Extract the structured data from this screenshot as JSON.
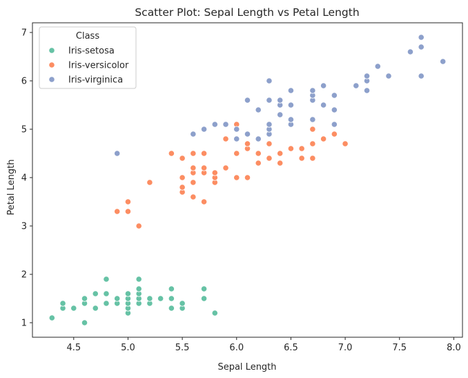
{
  "chart_data": {
    "type": "scatter",
    "title": "Scatter Plot: Sepal Length vs Petal Length",
    "xlabel": "Sepal Length",
    "ylabel": "Petal Length",
    "xlim": [
      4.12,
      8.08
    ],
    "ylim": [
      0.7,
      7.2
    ],
    "xticks": [
      4.5,
      5.0,
      5.5,
      6.0,
      6.5,
      7.0,
      7.5,
      8.0
    ],
    "xtick_labels": [
      "4.5",
      "5.0",
      "5.5",
      "6.0",
      "6.5",
      "7.0",
      "7.5",
      "8.0"
    ],
    "yticks": [
      1,
      2,
      3,
      4,
      5,
      6,
      7
    ],
    "ytick_labels": [
      "1",
      "2",
      "3",
      "4",
      "5",
      "6",
      "7"
    ],
    "grid": false,
    "legend": {
      "title": "Class",
      "position": "top-left"
    },
    "series": [
      {
        "name": "Iris-setosa",
        "color": "#66c2a5",
        "points": [
          [
            4.3,
            1.1
          ],
          [
            4.4,
            1.3
          ],
          [
            4.4,
            1.4
          ],
          [
            4.5,
            1.3
          ],
          [
            4.6,
            1.0
          ],
          [
            4.6,
            1.4
          ],
          [
            4.6,
            1.5
          ],
          [
            4.7,
            1.3
          ],
          [
            4.7,
            1.6
          ],
          [
            4.8,
            1.4
          ],
          [
            4.8,
            1.6
          ],
          [
            4.8,
            1.9
          ],
          [
            4.9,
            1.4
          ],
          [
            4.9,
            1.5
          ],
          [
            5.0,
            1.2
          ],
          [
            5.0,
            1.3
          ],
          [
            5.0,
            1.4
          ],
          [
            5.0,
            1.5
          ],
          [
            5.0,
            1.6
          ],
          [
            5.1,
            1.4
          ],
          [
            5.1,
            1.5
          ],
          [
            5.1,
            1.6
          ],
          [
            5.1,
            1.7
          ],
          [
            5.1,
            1.9
          ],
          [
            5.2,
            1.4
          ],
          [
            5.2,
            1.5
          ],
          [
            5.3,
            1.5
          ],
          [
            5.4,
            1.3
          ],
          [
            5.4,
            1.5
          ],
          [
            5.4,
            1.7
          ],
          [
            5.5,
            1.3
          ],
          [
            5.5,
            1.4
          ],
          [
            5.7,
            1.5
          ],
          [
            5.7,
            1.7
          ],
          [
            5.8,
            1.2
          ]
        ]
      },
      {
        "name": "Iris-versicolor",
        "color": "#fc8d62",
        "points": [
          [
            4.9,
            3.3
          ],
          [
            5.0,
            3.3
          ],
          [
            5.0,
            3.5
          ],
          [
            5.1,
            3.0
          ],
          [
            5.2,
            3.9
          ],
          [
            5.4,
            4.5
          ],
          [
            5.5,
            3.7
          ],
          [
            5.5,
            3.8
          ],
          [
            5.5,
            4.0
          ],
          [
            5.5,
            4.4
          ],
          [
            5.6,
            3.6
          ],
          [
            5.6,
            3.9
          ],
          [
            5.6,
            4.1
          ],
          [
            5.6,
            4.2
          ],
          [
            5.6,
            4.5
          ],
          [
            5.7,
            3.5
          ],
          [
            5.7,
            4.1
          ],
          [
            5.7,
            4.2
          ],
          [
            5.7,
            4.5
          ],
          [
            5.8,
            3.9
          ],
          [
            5.8,
            4.0
          ],
          [
            5.8,
            4.1
          ],
          [
            5.9,
            4.2
          ],
          [
            5.9,
            4.8
          ],
          [
            6.0,
            4.0
          ],
          [
            6.0,
            4.5
          ],
          [
            6.0,
            5.1
          ],
          [
            6.1,
            4.0
          ],
          [
            6.1,
            4.6
          ],
          [
            6.1,
            4.7
          ],
          [
            6.2,
            4.3
          ],
          [
            6.2,
            4.5
          ],
          [
            6.3,
            4.4
          ],
          [
            6.3,
            4.7
          ],
          [
            6.4,
            4.3
          ],
          [
            6.4,
            4.5
          ],
          [
            6.5,
            4.6
          ],
          [
            6.6,
            4.4
          ],
          [
            6.6,
            4.6
          ],
          [
            6.7,
            4.4
          ],
          [
            6.7,
            4.7
          ],
          [
            6.7,
            5.0
          ],
          [
            6.8,
            4.8
          ],
          [
            6.9,
            4.9
          ],
          [
            7.0,
            4.7
          ]
        ]
      },
      {
        "name": "Iris-virginica",
        "color": "#8da0cb",
        "points": [
          [
            4.9,
            4.5
          ],
          [
            5.6,
            4.9
          ],
          [
            5.7,
            5.0
          ],
          [
            5.8,
            5.1
          ],
          [
            5.9,
            5.1
          ],
          [
            6.0,
            4.8
          ],
          [
            6.0,
            5.0
          ],
          [
            6.1,
            4.9
          ],
          [
            6.1,
            5.6
          ],
          [
            6.2,
            4.8
          ],
          [
            6.2,
            5.4
          ],
          [
            6.3,
            4.9
          ],
          [
            6.3,
            5.0
          ],
          [
            6.3,
            5.1
          ],
          [
            6.3,
            5.6
          ],
          [
            6.3,
            6.0
          ],
          [
            6.4,
            5.3
          ],
          [
            6.4,
            5.5
          ],
          [
            6.4,
            5.6
          ],
          [
            6.5,
            5.1
          ],
          [
            6.5,
            5.2
          ],
          [
            6.5,
            5.5
          ],
          [
            6.5,
            5.8
          ],
          [
            6.7,
            5.2
          ],
          [
            6.7,
            5.6
          ],
          [
            6.7,
            5.7
          ],
          [
            6.7,
            5.8
          ],
          [
            6.8,
            5.5
          ],
          [
            6.8,
            5.9
          ],
          [
            6.9,
            5.1
          ],
          [
            6.9,
            5.4
          ],
          [
            6.9,
            5.7
          ],
          [
            7.1,
            5.9
          ],
          [
            7.2,
            5.8
          ],
          [
            7.2,
            6.0
          ],
          [
            7.2,
            6.1
          ],
          [
            7.3,
            6.3
          ],
          [
            7.4,
            6.1
          ],
          [
            7.6,
            6.6
          ],
          [
            7.7,
            6.1
          ],
          [
            7.7,
            6.7
          ],
          [
            7.7,
            6.9
          ],
          [
            7.9,
            6.4
          ]
        ]
      }
    ]
  }
}
